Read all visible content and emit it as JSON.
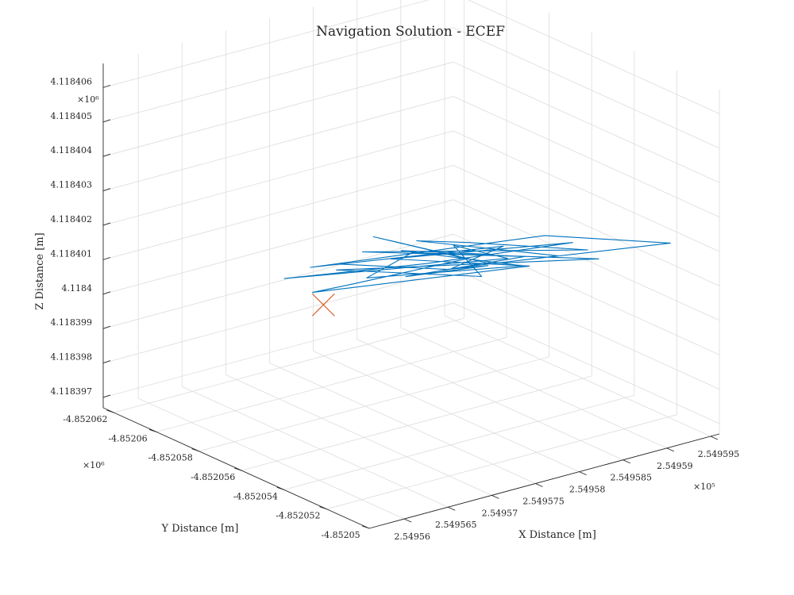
{
  "chart_data": {
    "type": "line3d",
    "title": "Navigation Solution - ECEF",
    "xlabel": "X Distance [m]",
    "ylabel": "Y Distance [m]",
    "zlabel": "Z Distance [m]",
    "x_multiplier": "×10⁵",
    "y_multiplier": "×10⁶",
    "z_multiplier": "×10⁶",
    "x_ticks": [
      "2.54956",
      "2.549565",
      "2.54957",
      "2.549575",
      "2.54958",
      "2.549585",
      "2.54959",
      "2.549595"
    ],
    "y_ticks": [
      "-4.85205",
      "-4.852052",
      "-4.852054",
      "-4.852056",
      "-4.852058",
      "-4.85206",
      "-4.852062"
    ],
    "z_ticks": [
      "4.118397",
      "4.118398",
      "4.118399",
      "4.1184",
      "4.118401",
      "4.118402",
      "4.118403",
      "4.118404",
      "4.118405",
      "4.118406"
    ],
    "xlim": [
      254955.6,
      254959.6
    ],
    "ylim": [
      -4852050,
      -4852062.5
    ],
    "zlim": [
      4118396.7,
      4118406.7
    ],
    "grid": true,
    "series": [
      {
        "color": "#0072BD",
        "style": "line",
        "points": [
          [
            254957.0,
            -4852057.2,
            4118401.4
          ],
          [
            254957.8,
            -4852055.4,
            4118401.2
          ],
          [
            254958.1,
            -4852054.7,
            4118401.3
          ],
          [
            254957.5,
            -4852056.1,
            4118401.0
          ],
          [
            254958.4,
            -4852054.2,
            4118401.5
          ],
          [
            254957.2,
            -4852056.9,
            4118401.7
          ],
          [
            254958.9,
            -4852053.3,
            4118401.6
          ],
          [
            254958.0,
            -4852055.2,
            4118401.9
          ],
          [
            254957.6,
            -4852056.0,
            4118402.0
          ],
          [
            254958.7,
            -4852053.9,
            4118401.4
          ],
          [
            254957.9,
            -4852055.6,
            4118401.1
          ],
          [
            254958.3,
            -4852054.8,
            4118401.7
          ],
          [
            254956.8,
            -4852057.7,
            4118401.3
          ],
          [
            254958.6,
            -4852054.1,
            4118402.0
          ],
          [
            254959.6,
            -4852052.3,
            4118401.6
          ],
          [
            254958.2,
            -4852055.0,
            4118401.2
          ],
          [
            254957.3,
            -4852056.8,
            4118402.1
          ],
          [
            254958.0,
            -4852055.3,
            4118401.4
          ],
          [
            254957.1,
            -4852057.0,
            4118400.8
          ],
          [
            254956.8,
            -4852057.6,
            4118400.6
          ],
          [
            254958.5,
            -4852054.4,
            4118401.1
          ],
          [
            254957.4,
            -4852056.4,
            4118401.5
          ],
          [
            254958.8,
            -4852053.6,
            4118401.8
          ],
          [
            254957.7,
            -4852055.9,
            4118401.3
          ],
          [
            254956.6,
            -4852058.1,
            4118401.0
          ],
          [
            254958.3,
            -4852054.6,
            4118401.4
          ],
          [
            254957.9,
            -4852055.5,
            4118401.8
          ],
          [
            254958.1,
            -4852055.0,
            4118400.9
          ],
          [
            254957.0,
            -4852057.3,
            4118401.2
          ],
          [
            254959.0,
            -4852053.2,
            4118401.3
          ],
          [
            254957.6,
            -4852056.2,
            4118401.6
          ],
          [
            254957.2,
            -4852056.7,
            4118401.0
          ],
          [
            254958.4,
            -4852054.3,
            4118401.2
          ],
          [
            254957.5,
            -4852056.3,
            4118401.7
          ],
          [
            254958.2,
            -4852054.9,
            4118401.5
          ]
        ]
      },
      {
        "color": "#D95319",
        "style": "marker-x",
        "points": [
          [
            254956.9,
            -4852057.5,
            4118400.2
          ]
        ]
      }
    ]
  }
}
